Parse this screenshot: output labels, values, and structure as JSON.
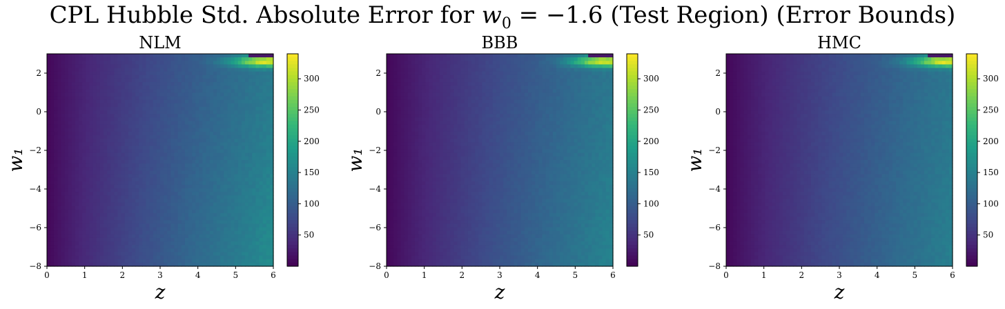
{
  "figure": {
    "title_prefix": "CPL Hubble Std. Absolute Error for ",
    "title_math_var": "w",
    "title_math_sub": "0",
    "title_math_rest": " = −1.6 (Test Region) (Error Bounds)"
  },
  "chart_data": [
    {
      "type": "heatmap",
      "title": "NLM",
      "xlabel": "z",
      "ylabel": "w₁",
      "xlim": [
        0,
        6
      ],
      "ylim": [
        -8,
        3
      ],
      "xticks": [
        "0",
        "1",
        "2",
        "3",
        "4",
        "5",
        "6"
      ],
      "yticks": [
        "2",
        "0",
        "−2",
        "−4",
        "−6",
        "−8"
      ],
      "colorbar": {
        "colormap": "viridis",
        "range": [
          0,
          340
        ],
        "ticks": [
          "300",
          "250",
          "200",
          "150",
          "100",
          "50"
        ]
      },
      "features": {
        "max_value_near": {
          "z": 5.8,
          "w1": 2.6,
          "value": 335
        },
        "value_at_z6_w1_0": 145,
        "value_at_z6_w1_minus6": 160,
        "value_at_z0": 5
      }
    },
    {
      "type": "heatmap",
      "title": "BBB",
      "xlabel": "z",
      "ylabel": "w₁",
      "xlim": [
        0,
        6
      ],
      "ylim": [
        -8,
        3
      ],
      "xticks": [
        "0",
        "1",
        "2",
        "3",
        "4",
        "5",
        "6"
      ],
      "yticks": [
        "2",
        "0",
        "−2",
        "−4",
        "−6",
        "−8"
      ],
      "colorbar": {
        "colormap": "viridis",
        "range": [
          0,
          340
        ],
        "ticks": [
          "300",
          "250",
          "200",
          "150",
          "100",
          "50"
        ]
      },
      "features": {
        "max_value_near": {
          "z": 5.8,
          "w1": 2.6,
          "value": 335
        },
        "value_at_z6_w1_0": 140,
        "value_at_z6_w1_minus6": 150,
        "value_at_z0": 5
      }
    },
    {
      "type": "heatmap",
      "title": "HMC",
      "xlabel": "z",
      "ylabel": "w₁",
      "xlim": [
        0,
        6
      ],
      "ylim": [
        -8,
        3
      ],
      "xticks": [
        "0",
        "1",
        "2",
        "3",
        "4",
        "5",
        "6"
      ],
      "yticks": [
        "2",
        "0",
        "−2",
        "−4",
        "−6",
        "−8"
      ],
      "colorbar": {
        "colormap": "viridis",
        "range": [
          0,
          340
        ],
        "ticks": [
          "300",
          "250",
          "200",
          "150",
          "100",
          "50"
        ]
      },
      "features": {
        "max_value_near": {
          "z": 5.8,
          "w1": 2.6,
          "value": 335
        },
        "value_at_z6_w1_0": 138,
        "value_at_z6_w1_minus6": 145,
        "value_at_z0": 5
      }
    }
  ]
}
